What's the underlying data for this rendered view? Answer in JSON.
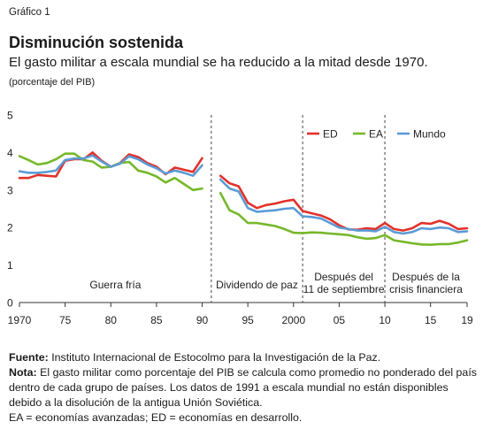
{
  "header": {
    "figure_label": "Gráfico 1",
    "title": "Disminución sostenida",
    "subtitle": "El gasto militar a escala mundial se ha reducido a la mitad desde 1970.",
    "units": "(porcentaje del PIB)"
  },
  "chart_data": {
    "type": "line",
    "title": "Disminución sostenida",
    "ylabel": "(porcentaje del PIB)",
    "xlim": [
      1970,
      2019
    ],
    "ylim": [
      0,
      5
    ],
    "yticks": [
      0,
      1,
      2,
      3,
      4,
      5
    ],
    "xticks": [
      {
        "value": 1970,
        "label": "1970"
      },
      {
        "value": 1975,
        "label": "75"
      },
      {
        "value": 1980,
        "label": "80"
      },
      {
        "value": 1985,
        "label": "85"
      },
      {
        "value": 1990,
        "label": "90"
      },
      {
        "value": 1995,
        "label": "95"
      },
      {
        "value": 2000,
        "label": "2000"
      },
      {
        "value": 2005,
        "label": "05"
      },
      {
        "value": 2010,
        "label": "10"
      },
      {
        "value": 2015,
        "label": "15"
      },
      {
        "value": 2019,
        "label": "19"
      }
    ],
    "grid": false,
    "legend_position": "top-right",
    "period_dividers": [
      1991,
      2001,
      2010
    ],
    "periods": [
      {
        "lines": [
          "Guerra fría"
        ]
      },
      {
        "lines": [
          "Dividendo de paz"
        ]
      },
      {
        "lines": [
          "Después del",
          "11 de septiembre"
        ]
      },
      {
        "lines": [
          "Después de la",
          "crisis financiera"
        ]
      }
    ],
    "segments": [
      {
        "x": [
          1970,
          1971,
          1972,
          1973,
          1974,
          1975,
          1976,
          1977,
          1978,
          1979,
          1980,
          1981,
          1982,
          1983,
          1984,
          1985,
          1986,
          1987,
          1988,
          1989,
          1990
        ]
      },
      {
        "x": [
          1992,
          1993,
          1994,
          1995,
          1996,
          1997,
          1998,
          1999,
          2000,
          2001,
          2002,
          2003,
          2004,
          2005,
          2006,
          2007,
          2008,
          2009,
          2010,
          2011,
          2012,
          2013,
          2014,
          2015,
          2016,
          2017,
          2018,
          2019
        ]
      }
    ],
    "series": [
      {
        "name": "ED",
        "color": "#e3312a",
        "values": [
          [
            3.32,
            3.32,
            3.4,
            3.38,
            3.36,
            3.78,
            3.82,
            3.82,
            4.0,
            3.78,
            3.62,
            3.72,
            3.95,
            3.88,
            3.72,
            3.62,
            3.42,
            3.6,
            3.54,
            3.48,
            3.85
          ],
          [
            3.38,
            3.18,
            3.1,
            2.66,
            2.52,
            2.6,
            2.64,
            2.7,
            2.74,
            2.44,
            2.38,
            2.32,
            2.22,
            2.06,
            1.95,
            1.94,
            1.98,
            1.96,
            2.12,
            1.96,
            1.92,
            1.98,
            2.12,
            2.1,
            2.18,
            2.1,
            1.96,
            1.98
          ]
        ]
      },
      {
        "name": "EA",
        "color": "#76b82a",
        "values": [
          [
            3.9,
            3.8,
            3.68,
            3.72,
            3.82,
            3.97,
            3.97,
            3.8,
            3.76,
            3.6,
            3.62,
            3.72,
            3.75,
            3.52,
            3.46,
            3.36,
            3.2,
            3.32,
            3.16,
            3.0,
            3.04
          ],
          [
            2.92,
            2.46,
            2.35,
            2.12,
            2.12,
            2.08,
            2.04,
            1.96,
            1.86,
            1.85,
            1.87,
            1.86,
            1.84,
            1.82,
            1.8,
            1.74,
            1.7,
            1.72,
            1.8,
            1.66,
            1.62,
            1.58,
            1.55,
            1.54,
            1.56,
            1.56,
            1.6,
            1.66
          ]
        ]
      },
      {
        "name": "Mundo",
        "color": "#5b9bd5",
        "values": [
          [
            3.5,
            3.46,
            3.46,
            3.48,
            3.52,
            3.8,
            3.84,
            3.84,
            3.92,
            3.76,
            3.62,
            3.7,
            3.9,
            3.82,
            3.68,
            3.58,
            3.44,
            3.52,
            3.46,
            3.38,
            3.66
          ],
          [
            3.28,
            3.04,
            2.96,
            2.52,
            2.42,
            2.44,
            2.46,
            2.5,
            2.52,
            2.3,
            2.28,
            2.24,
            2.12,
            2.0,
            1.96,
            1.92,
            1.92,
            1.9,
            2.02,
            1.88,
            1.84,
            1.88,
            1.98,
            1.96,
            2.0,
            1.98,
            1.88,
            1.9
          ]
        ]
      }
    ]
  },
  "notes": {
    "source_label": "Fuente:",
    "source_text": "Instituto Internacional de Estocolmo para la Investigación de la Paz.",
    "note_label": "Nota:",
    "note_text": "El gasto militar como porcentaje del PIB se calcula como promedio no ponderado del país dentro de cada grupo de países. Los datos de 1991 a escala mundial no están disponibles debido a la disolución de la antigua Unión Soviética.",
    "abbrev_text": "EA = economías avanzadas; ED = economías en desarrollo."
  }
}
